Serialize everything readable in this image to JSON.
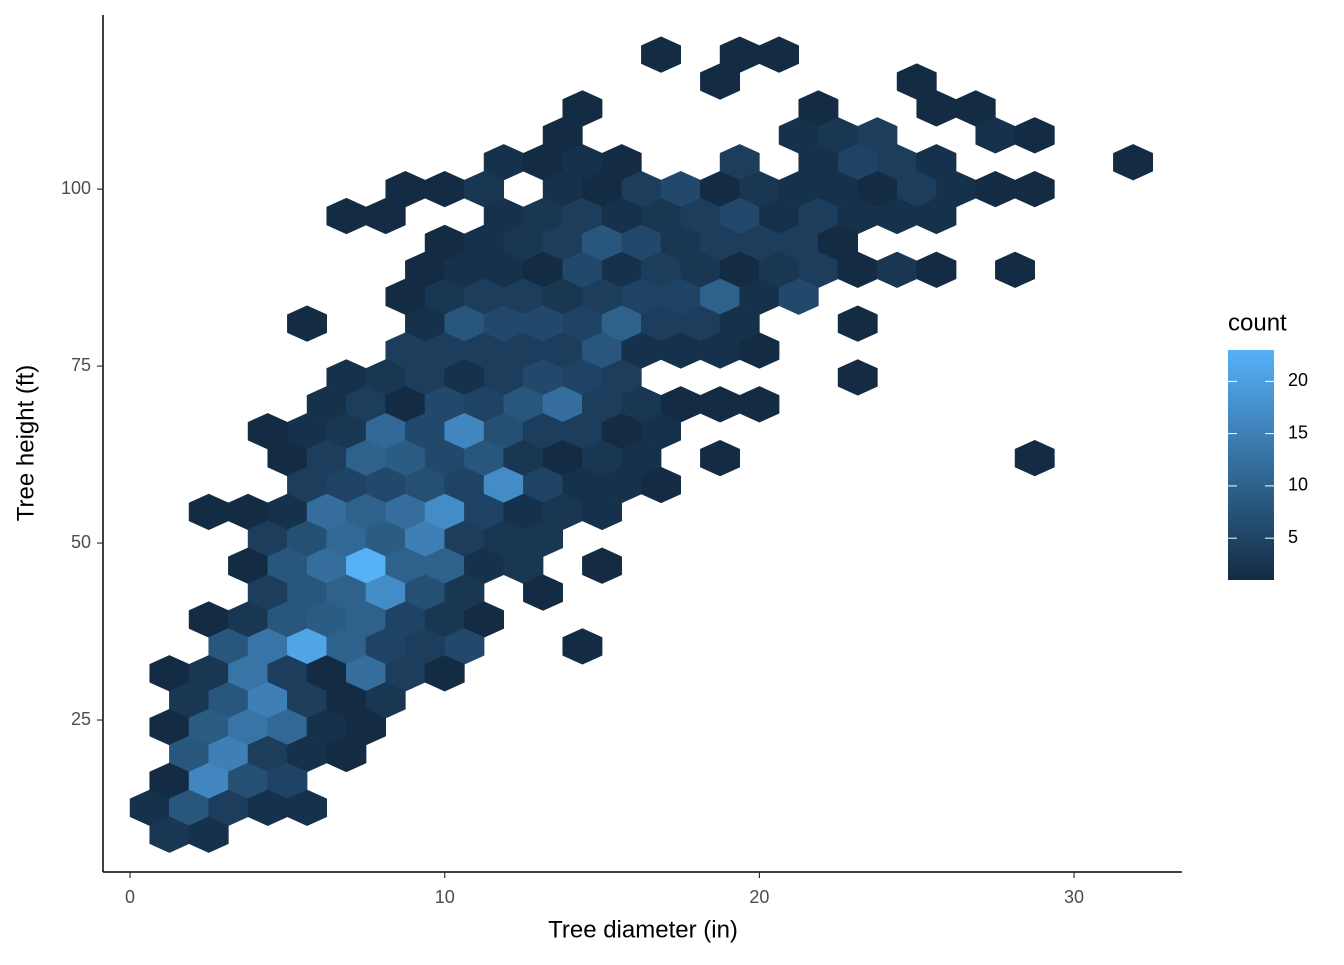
{
  "chart_data": {
    "type": "hexbin",
    "x_label": "Tree diameter (in)",
    "y_label": "Tree height (ft)",
    "legend_title": "count",
    "x": [
      16.875,
      19.375,
      20.625,
      18.75,
      25,
      14.375,
      21.875,
      25.625,
      26.875,
      13.75,
      21.25,
      22.5,
      23.75,
      27.5,
      28.75,
      11.875,
      13.125,
      14.375,
      15.625,
      19.375,
      21.875,
      23.125,
      24.375,
      25.625,
      31.875,
      8.75,
      10,
      11.25,
      13.75,
      15,
      16.25,
      17.5,
      18.75,
      20,
      21.25,
      22.5,
      23.75,
      25,
      26.25,
      27.5,
      28.75,
      6.875,
      8.125,
      11.875,
      13.125,
      14.375,
      15.625,
      16.875,
      18.125,
      19.375,
      20.625,
      21.875,
      23.125,
      24.375,
      25.625,
      10,
      11.25,
      12.5,
      13.75,
      15,
      16.25,
      17.5,
      18.75,
      20,
      21.25,
      22.5,
      9.375,
      10.625,
      11.875,
      13.125,
      14.375,
      15.625,
      16.875,
      18.125,
      19.375,
      20.625,
      21.875,
      23.125,
      24.375,
      25.625,
      28.125,
      8.75,
      10,
      11.25,
      12.5,
      13.75,
      15,
      16.25,
      17.5,
      18.75,
      20,
      21.25,
      5.625,
      9.375,
      10.625,
      11.875,
      13.125,
      14.375,
      15.625,
      16.875,
      18.125,
      19.375,
      23.125,
      8.75,
      10,
      11.25,
      12.5,
      13.75,
      15,
      16.25,
      17.5,
      18.75,
      20,
      6.875,
      8.125,
      9.375,
      10.625,
      11.875,
      13.125,
      14.375,
      15.625,
      23.125,
      6.25,
      7.5,
      8.75,
      10,
      11.25,
      12.5,
      13.75,
      15,
      16.25,
      17.5,
      18.75,
      20,
      4.375,
      5.625,
      6.875,
      8.125,
      9.375,
      10.625,
      11.875,
      13.125,
      14.375,
      15.625,
      16.875,
      5,
      6.25,
      7.5,
      8.75,
      10,
      11.25,
      12.5,
      13.75,
      15,
      16.25,
      18.75,
      28.75,
      5.625,
      6.875,
      8.125,
      9.375,
      10.625,
      11.875,
      13.125,
      14.375,
      15.625,
      16.875,
      2.5,
      3.75,
      5,
      6.25,
      7.5,
      8.75,
      10,
      11.25,
      12.5,
      13.75,
      15,
      4.375,
      5.625,
      6.875,
      8.125,
      9.375,
      10.625,
      11.875,
      13.125,
      3.75,
      5,
      6.25,
      7.5,
      8.75,
      10,
      11.25,
      12.5,
      15,
      4.375,
      5.625,
      6.875,
      8.125,
      9.375,
      10.625,
      13.125,
      2.5,
      3.75,
      5,
      6.25,
      7.5,
      8.75,
      10,
      11.25,
      3.125,
      4.375,
      5.625,
      6.875,
      8.125,
      9.375,
      10.625,
      14.375,
      1.25,
      2.5,
      3.75,
      5,
      6.25,
      7.5,
      8.75,
      10,
      1.875,
      3.125,
      4.375,
      5.625,
      6.875,
      8.125,
      1.25,
      2.5,
      3.75,
      5,
      6.25,
      7.5,
      1.875,
      3.125,
      4.375,
      5.625,
      6.875,
      1.25,
      2.5,
      3.75,
      5,
      0.625,
      1.875,
      3.125,
      4.375,
      5.625,
      1.25,
      2.5
    ],
    "y": [
      119,
      119,
      119,
      115.2,
      115.2,
      111.4,
      111.4,
      111.4,
      111.4,
      107.6,
      107.6,
      107.6,
      107.6,
      107.6,
      107.6,
      103.8,
      103.8,
      103.8,
      103.8,
      103.8,
      103.8,
      103.8,
      103.8,
      103.8,
      103.8,
      100,
      100,
      100,
      100,
      100,
      100,
      100,
      100,
      100,
      100,
      100,
      100,
      100,
      100,
      100,
      100,
      96.2,
      96.2,
      96.2,
      96.2,
      96.2,
      96.2,
      96.2,
      96.2,
      96.2,
      96.2,
      96.2,
      96.2,
      96.2,
      96.2,
      92.4,
      92.4,
      92.4,
      92.4,
      92.4,
      92.4,
      92.4,
      92.4,
      92.4,
      92.4,
      92.4,
      88.6,
      88.6,
      88.6,
      88.6,
      88.6,
      88.6,
      88.6,
      88.6,
      88.6,
      88.6,
      88.6,
      88.6,
      88.6,
      88.6,
      88.6,
      84.8,
      84.8,
      84.8,
      84.8,
      84.8,
      84.8,
      84.8,
      84.8,
      84.8,
      84.8,
      84.8,
      81,
      81,
      81,
      81,
      81,
      81,
      81,
      81,
      81,
      81,
      81,
      77.2,
      77.2,
      77.2,
      77.2,
      77.2,
      77.2,
      77.2,
      77.2,
      77.2,
      77.2,
      73.4,
      73.4,
      73.4,
      73.4,
      73.4,
      73.4,
      73.4,
      73.4,
      73.4,
      69.6,
      69.6,
      69.6,
      69.6,
      69.6,
      69.6,
      69.6,
      69.6,
      69.6,
      69.6,
      69.6,
      69.6,
      65.8,
      65.8,
      65.8,
      65.8,
      65.8,
      65.8,
      65.8,
      65.8,
      65.8,
      65.8,
      65.8,
      62,
      62,
      62,
      62,
      62,
      62,
      62,
      62,
      62,
      62,
      62,
      62,
      58.2,
      58.2,
      58.2,
      58.2,
      58.2,
      58.2,
      58.2,
      58.2,
      58.2,
      58.2,
      54.4,
      54.4,
      54.4,
      54.4,
      54.4,
      54.4,
      54.4,
      54.4,
      54.4,
      54.4,
      54.4,
      50.6,
      50.6,
      50.6,
      50.6,
      50.6,
      50.6,
      50.6,
      50.6,
      46.8,
      46.8,
      46.8,
      46.8,
      46.8,
      46.8,
      46.8,
      46.8,
      46.8,
      43,
      43,
      43,
      43,
      43,
      43,
      43,
      39.2,
      39.2,
      39.2,
      39.2,
      39.2,
      39.2,
      39.2,
      39.2,
      35.4,
      35.4,
      35.4,
      35.4,
      35.4,
      35.4,
      35.4,
      35.4,
      31.6,
      31.6,
      31.6,
      31.6,
      31.6,
      31.6,
      31.6,
      31.6,
      27.8,
      27.8,
      27.8,
      27.8,
      27.8,
      27.8,
      24,
      24,
      24,
      24,
      24,
      24,
      20.2,
      20.2,
      20.2,
      20.2,
      20.2,
      16.4,
      16.4,
      16.4,
      16.4,
      12.6,
      12.6,
      12.6,
      12.6,
      12.6,
      8.8,
      8.8
    ],
    "values": [
      1,
      1,
      1,
      1,
      1,
      1,
      1,
      1,
      1,
      1,
      2,
      3,
      4,
      2,
      1,
      2,
      1,
      2,
      1,
      4,
      2,
      5,
      4,
      2,
      1,
      1,
      1,
      3,
      2,
      1,
      4,
      6,
      1,
      3,
      2,
      2,
      1,
      4,
      2,
      1,
      1,
      1,
      1,
      2,
      3,
      4,
      2,
      3,
      4,
      6,
      2,
      4,
      2,
      2,
      2,
      1,
      2,
      3,
      4,
      8,
      6,
      3,
      4,
      4,
      4,
      1,
      1,
      2,
      2,
      1,
      6,
      2,
      4,
      3,
      1,
      3,
      4,
      1,
      3,
      1,
      1,
      1,
      3,
      4,
      4,
      3,
      4,
      5,
      5,
      10,
      2,
      6,
      1,
      2,
      8,
      6,
      6,
      5,
      10,
      4,
      4,
      2,
      1,
      4,
      4,
      4,
      4,
      4,
      8,
      2,
      2,
      2,
      1,
      2,
      3,
      4,
      2,
      4,
      6,
      5,
      4,
      1,
      2,
      4,
      1,
      6,
      5,
      8,
      12,
      4,
      3,
      1,
      1,
      1,
      1,
      2,
      3,
      11,
      6,
      16,
      7,
      4,
      4,
      1,
      2,
      1,
      4,
      10,
      9,
      6,
      8,
      3,
      1,
      3,
      2,
      1,
      1,
      4,
      5,
      6,
      7,
      5,
      17,
      5,
      2,
      2,
      1,
      1,
      1,
      2,
      12,
      10,
      12,
      17,
      5,
      2,
      3,
      2,
      4,
      7,
      11,
      9,
      15,
      4,
      3,
      3,
      1,
      8,
      12,
      23,
      10,
      10,
      2,
      3,
      1,
      4,
      8,
      10,
      17,
      7,
      3,
      1,
      1,
      3,
      8,
      9,
      10,
      5,
      3,
      1,
      8,
      13,
      21,
      10,
      5,
      4,
      6,
      1,
      1,
      3,
      13,
      4,
      1,
      12,
      4,
      1,
      3,
      8,
      15,
      4,
      1,
      3,
      1,
      9,
      13,
      11,
      2,
      1,
      8,
      15,
      4,
      2,
      1,
      1,
      16,
      7,
      5,
      2,
      8,
      4,
      2,
      2,
      3,
      2
    ],
    "xlim": [
      -0.86,
      33.43
    ],
    "ylim": [
      3.53,
      124.6
    ],
    "xticks": [
      0,
      10,
      20,
      30
    ],
    "yticks": [
      25,
      50,
      75,
      100
    ],
    "colors": [
      "#132B43",
      "#56B1F7"
    ],
    "color_lim": [
      1,
      23
    ],
    "legend_ticks": [
      5,
      10,
      15,
      20
    ]
  }
}
